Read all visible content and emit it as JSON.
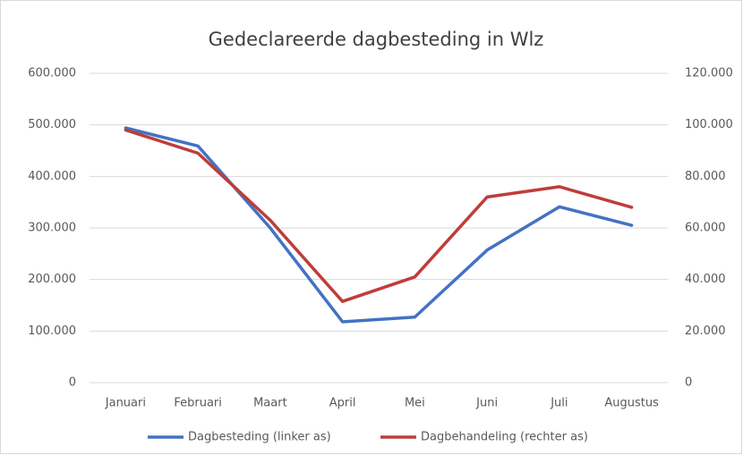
{
  "chart_data": {
    "type": "line",
    "title": "Gedeclareerde dagbesteding in Wlz",
    "categories": [
      "Januari",
      "Februari",
      "Maart",
      "April",
      "Mei",
      "Juni",
      "Juli",
      "Augustus"
    ],
    "series": [
      {
        "name": "Dagbesteding (linker as)",
        "color": "#4472c4",
        "values": [
          494000,
          459000,
          300000,
          118000,
          127000,
          257000,
          341000,
          305000
        ]
      },
      {
        "name": "Dagbehandeling (rechter as)",
        "color": "#be3d3a",
        "axis": "y2",
        "values": [
          98000,
          89000,
          63000,
          31500,
          41000,
          72000,
          76000,
          68000
        ]
      }
    ],
    "ylim": [
      0,
      600000
    ],
    "yticks": [
      0,
      {
        "value": 100000,
        "label": "100.000"
      },
      {
        "value": 200000,
        "label": "200.000"
      },
      {
        "value": 300000,
        "label": "300.000"
      },
      {
        "value": 400000,
        "label": "400.000"
      },
      {
        "value": 500000,
        "label": "500.000"
      },
      {
        "value": 600000,
        "label": "600.000"
      }
    ],
    "y2lim": [
      0,
      120000
    ],
    "y2ticks": [
      0,
      {
        "value": 20000,
        "label": "20.000"
      },
      {
        "value": 40000,
        "label": "40.000"
      },
      {
        "value": 60000,
        "label": "60.000"
      },
      {
        "value": 80000,
        "label": "80.000"
      },
      {
        "value": 100000,
        "label": "100.000"
      },
      {
        "value": 120000,
        "label": "120.000"
      }
    ],
    "grid": true,
    "legend": "bottom"
  }
}
